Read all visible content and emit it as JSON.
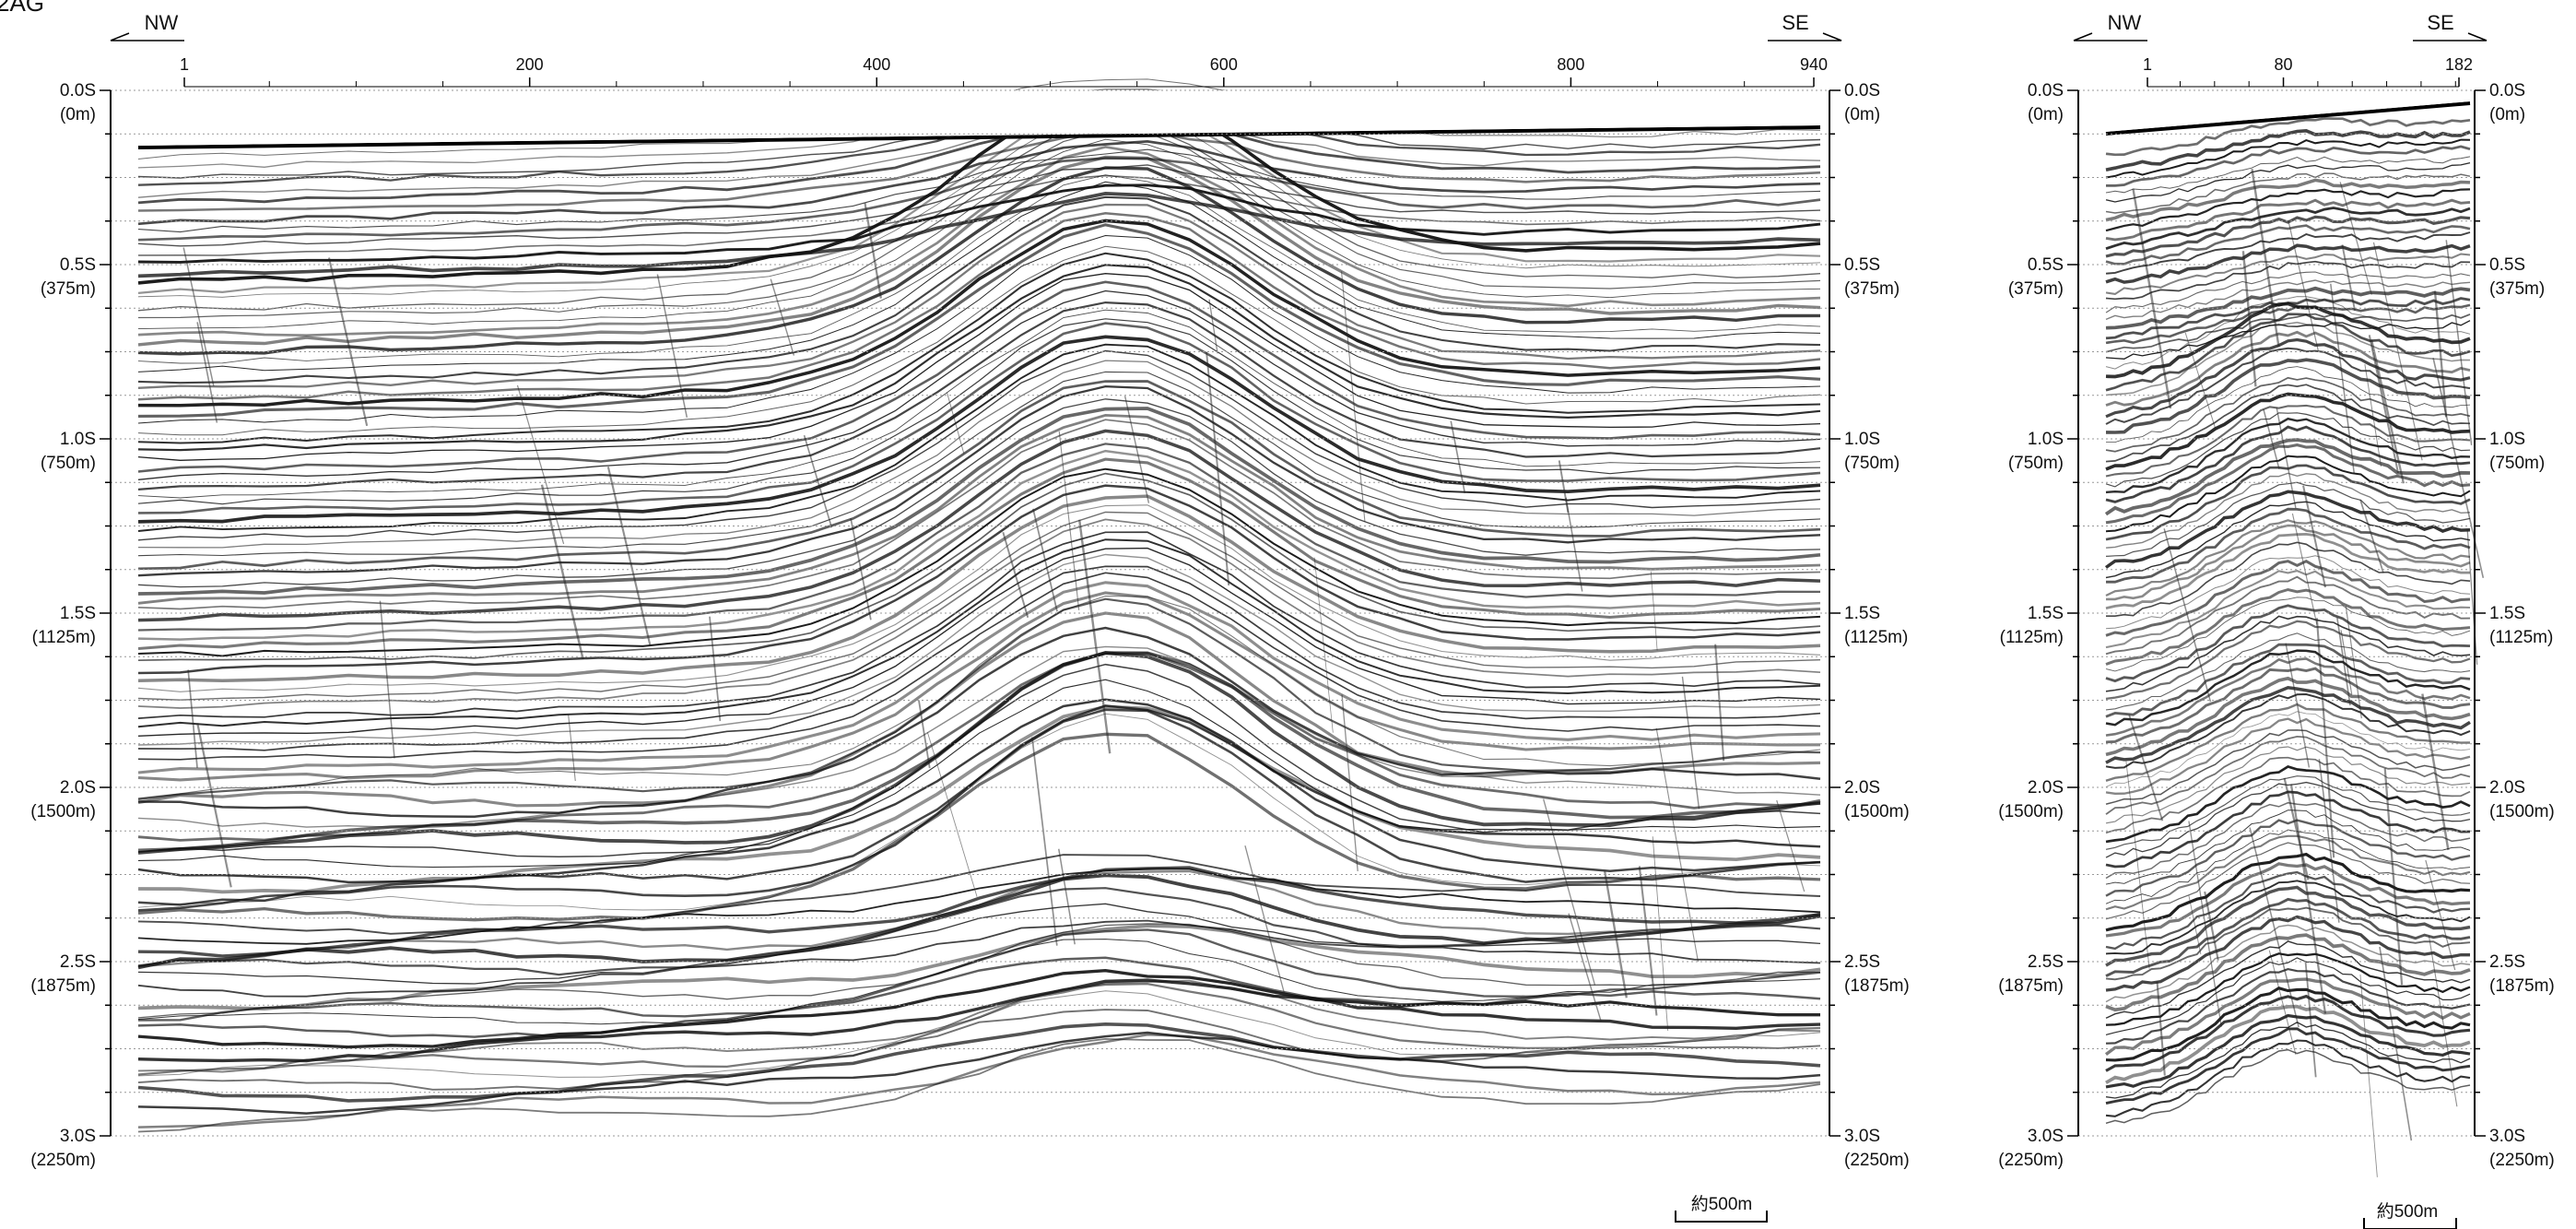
{
  "figure": {
    "corner_label": "2AG",
    "scale_bar_label": "約500m"
  },
  "panels": [
    {
      "id": "main-section",
      "direction_left": "NW",
      "direction_right": "SE",
      "cdp_ticks": [
        {
          "label": "1",
          "value": 1
        },
        {
          "label": "200",
          "value": 200
        },
        {
          "label": "400",
          "value": 400
        },
        {
          "label": "600",
          "value": 600
        },
        {
          "label": "800",
          "value": 800
        },
        {
          "label": "940",
          "value": 940
        }
      ],
      "cdp_range": [
        1,
        940
      ]
    },
    {
      "id": "short-section",
      "direction_left": "NW",
      "direction_right": "SE",
      "cdp_ticks": [
        {
          "label": "1",
          "value": 1
        },
        {
          "label": "80",
          "value": 80
        },
        {
          "label": "182",
          "value": 182
        }
      ],
      "cdp_range": [
        1,
        182
      ]
    }
  ],
  "time_axis": {
    "range_s": [
      0,
      3
    ],
    "ticks": [
      {
        "time": "0.0S",
        "depth": "(0m)",
        "value": 0.0
      },
      {
        "time": "0.5S",
        "depth": "(375m)",
        "value": 0.5
      },
      {
        "time": "1.0S",
        "depth": "(750m)",
        "value": 1.0
      },
      {
        "time": "1.5S",
        "depth": "(1125m)",
        "value": 1.5
      },
      {
        "time": "2.0S",
        "depth": "(1500m)",
        "value": 2.0
      },
      {
        "time": "2.5S",
        "depth": "(1875m)",
        "value": 2.5
      },
      {
        "time": "3.0S",
        "depth": "(2250m)",
        "value": 3.0
      }
    ]
  }
}
